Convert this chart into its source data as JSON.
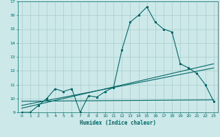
{
  "title": "",
  "xlabel": "Humidex (Indice chaleur)",
  "ylabel": "",
  "bg_color": "#cce8e8",
  "grid_color": "#aacccc",
  "line_color": "#006666",
  "xlim": [
    -0.5,
    23.5
  ],
  "ylim": [
    9,
    17
  ],
  "yticks": [
    9,
    10,
    11,
    12,
    13,
    14,
    15,
    16,
    17
  ],
  "xticks": [
    0,
    1,
    2,
    3,
    4,
    5,
    6,
    7,
    8,
    9,
    10,
    11,
    12,
    13,
    14,
    15,
    16,
    17,
    18,
    19,
    20,
    21,
    22,
    23
  ],
  "series1_x": [
    0,
    1,
    2,
    3,
    4,
    5,
    6,
    7,
    8,
    9,
    10,
    11,
    12,
    13,
    14,
    15,
    16,
    17,
    18,
    19,
    20,
    21,
    22,
    23
  ],
  "series1_y": [
    9.0,
    9.0,
    9.5,
    10.0,
    10.7,
    10.5,
    10.7,
    9.0,
    10.2,
    10.1,
    10.5,
    10.8,
    13.5,
    15.5,
    16.0,
    16.6,
    15.5,
    15.0,
    14.8,
    12.5,
    12.2,
    11.8,
    11.0,
    9.8
  ],
  "series2_x": [
    0,
    23
  ],
  "series2_y": [
    9.3,
    12.5
  ],
  "series3_x": [
    0,
    23
  ],
  "series3_y": [
    9.5,
    12.2
  ],
  "series4_x": [
    0,
    23
  ],
  "series4_y": [
    9.8,
    9.9
  ]
}
